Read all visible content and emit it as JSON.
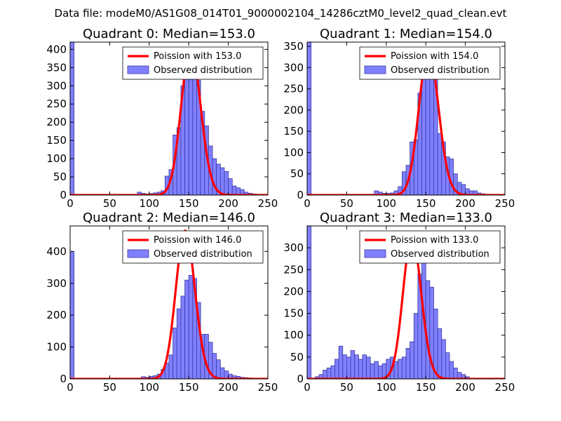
{
  "suptitle": "Data file: modeM0/AS1G08_014T01_9000002104_14286cztM0_level2_quad_clean.evt",
  "colors": {
    "poisson": "#ff0000",
    "hist_fill": "#8080ff",
    "hist_edge": "#3a3aa0"
  },
  "chart_data": [
    {
      "type": "bar",
      "title": "Quadrant 0: Median=153.0",
      "median": 153.0,
      "xlim": [
        0,
        250
      ],
      "ylim": [
        0,
        420
      ],
      "xticks": [
        0,
        50,
        100,
        150,
        200,
        250
      ],
      "yticks": [
        0,
        50,
        100,
        150,
        200,
        250,
        300,
        350,
        400
      ],
      "legend": {
        "placement": "top-right",
        "entries": [
          "Poission with 153.0",
          "Observed distribution"
        ]
      },
      "bin_width": 5,
      "bins_start": [
        0,
        80,
        85,
        90,
        95,
        100,
        105,
        110,
        115,
        120,
        125,
        130,
        135,
        140,
        145,
        150,
        155,
        160,
        165,
        170,
        175,
        180,
        185,
        190,
        195,
        200,
        205,
        210,
        215,
        220,
        225,
        230
      ],
      "counts": [
        420,
        0,
        8,
        5,
        3,
        4,
        6,
        8,
        12,
        52,
        70,
        165,
        185,
        300,
        380,
        355,
        335,
        315,
        230,
        190,
        135,
        100,
        85,
        75,
        65,
        45,
        25,
        20,
        15,
        8,
        5,
        3
      ],
      "poisson_lambda": 153.0,
      "poisson_scale": 403
    },
    {
      "type": "bar",
      "title": "Quadrant 1: Median=154.0",
      "median": 154.0,
      "xlim": [
        0,
        250
      ],
      "ylim": [
        0,
        360
      ],
      "xticks": [
        0,
        50,
        100,
        150,
        200,
        250
      ],
      "yticks": [
        0,
        50,
        100,
        150,
        200,
        250,
        300,
        350
      ],
      "legend": {
        "placement": "top-right",
        "entries": [
          "Poission with 154.0",
          "Observed distribution"
        ]
      },
      "bin_width": 5,
      "bins_start": [
        0,
        85,
        90,
        95,
        100,
        105,
        110,
        115,
        120,
        125,
        130,
        135,
        140,
        145,
        150,
        155,
        160,
        165,
        170,
        175,
        180,
        185,
        190,
        195,
        200,
        205,
        210,
        215,
        220
      ],
      "counts": [
        360,
        10,
        7,
        4,
        4,
        5,
        10,
        20,
        55,
        70,
        125,
        130,
        240,
        300,
        310,
        290,
        290,
        145,
        125,
        90,
        85,
        50,
        30,
        25,
        15,
        10,
        10,
        5,
        3
      ],
      "poisson_lambda": 154.0,
      "poisson_scale": 340
    },
    {
      "type": "bar",
      "title": "Quadrant 2: Median=146.0",
      "median": 146.0,
      "xlim": [
        0,
        250
      ],
      "ylim": [
        0,
        480
      ],
      "xticks": [
        0,
        50,
        100,
        150,
        200,
        250
      ],
      "yticks": [
        0,
        100,
        200,
        300,
        400
      ],
      "legend": {
        "placement": "top-right",
        "entries": [
          "Poission with 146.0",
          "Observed distribution"
        ]
      },
      "bin_width": 5,
      "bins_start": [
        0,
        90,
        95,
        100,
        105,
        110,
        115,
        120,
        125,
        130,
        135,
        140,
        145,
        150,
        155,
        160,
        165,
        170,
        175,
        180,
        185,
        190,
        195,
        200,
        205,
        210,
        215,
        220,
        225
      ],
      "counts": [
        400,
        7,
        5,
        8,
        10,
        15,
        30,
        50,
        75,
        160,
        220,
        260,
        310,
        325,
        315,
        240,
        140,
        140,
        115,
        80,
        60,
        35,
        25,
        15,
        10,
        8,
        5,
        4,
        3
      ],
      "poisson_lambda": 146.0,
      "poisson_scale": 465
    },
    {
      "type": "bar",
      "title": "Quadrant 3: Median=133.0",
      "median": 133.0,
      "xlim": [
        0,
        250
      ],
      "ylim": [
        0,
        350
      ],
      "xticks": [
        0,
        50,
        100,
        150,
        200,
        250
      ],
      "yticks": [
        0,
        50,
        100,
        150,
        200,
        250,
        300
      ],
      "legend": {
        "placement": "top-right",
        "entries": [
          "Poission with 133.0",
          "Observed distribution"
        ]
      },
      "bin_width": 5,
      "bins_start": [
        0,
        10,
        15,
        20,
        25,
        30,
        35,
        40,
        45,
        50,
        55,
        60,
        65,
        70,
        75,
        80,
        85,
        90,
        95,
        100,
        105,
        110,
        115,
        120,
        125,
        130,
        135,
        140,
        145,
        150,
        155,
        160,
        165,
        170,
        175,
        180,
        185,
        190,
        195,
        200
      ],
      "counts": [
        350,
        5,
        10,
        20,
        25,
        30,
        45,
        75,
        55,
        50,
        65,
        55,
        45,
        55,
        50,
        35,
        40,
        30,
        35,
        45,
        50,
        40,
        45,
        50,
        70,
        85,
        150,
        240,
        290,
        225,
        210,
        160,
        115,
        90,
        60,
        40,
        25,
        15,
        10,
        5
      ],
      "poisson_lambda": 133.0,
      "poisson_scale": 325
    }
  ]
}
